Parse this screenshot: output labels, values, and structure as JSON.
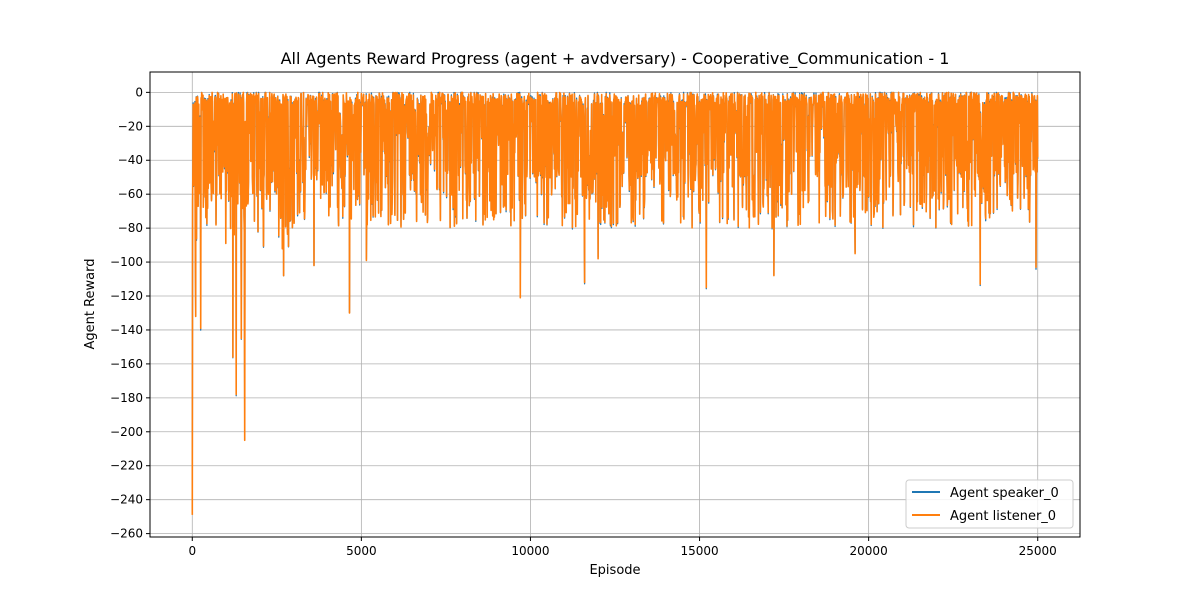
{
  "chart_data": {
    "type": "line",
    "title": "All Agents Reward Progress (agent + avdversary) - Cooperative_Communication - 1",
    "xlabel": "Episode",
    "ylabel": "Agent Reward",
    "xlim": [
      -1250,
      26250
    ],
    "ylim": [
      -262,
      12
    ],
    "xticks": [
      0,
      5000,
      10000,
      15000,
      20000,
      25000
    ],
    "yticks": [
      0,
      -20,
      -40,
      -60,
      -80,
      -100,
      -120,
      -140,
      -160,
      -180,
      -200,
      -220,
      -240,
      -260
    ],
    "grid": true,
    "legend_position": "lower-right",
    "colors": {
      "speaker": "#1f77b4",
      "listener": "#ff7f0e"
    },
    "series": [
      {
        "name": "Agent speaker_0",
        "color": "#1f77b4",
        "summary": {
          "x_range": [
            0,
            25000
          ],
          "typical_max": 0,
          "typical_min": -75,
          "min_value": -249
        }
      },
      {
        "name": "Agent listener_0",
        "color": "#ff7f0e",
        "summary": {
          "x_range": [
            0,
            25000
          ],
          "typical_max": 0,
          "typical_min": -75,
          "min_value": -249
        }
      }
    ],
    "notable_minima": [
      {
        "x": 0,
        "y": -249
      },
      {
        "x": 100,
        "y": -132
      },
      {
        "x": 250,
        "y": -139
      },
      {
        "x": 1200,
        "y": -156
      },
      {
        "x": 1300,
        "y": -178
      },
      {
        "x": 1450,
        "y": -145
      },
      {
        "x": 1550,
        "y": -205
      },
      {
        "x": 2700,
        "y": -108
      },
      {
        "x": 3600,
        "y": -102
      },
      {
        "x": 4650,
        "y": -130
      },
      {
        "x": 5150,
        "y": -99
      },
      {
        "x": 9700,
        "y": -121
      },
      {
        "x": 11600,
        "y": -112
      },
      {
        "x": 12000,
        "y": -98
      },
      {
        "x": 15200,
        "y": -115
      },
      {
        "x": 17200,
        "y": -108
      },
      {
        "x": 19600,
        "y": -95
      },
      {
        "x": 23300,
        "y": -113
      },
      {
        "x": 24950,
        "y": -103
      }
    ]
  }
}
